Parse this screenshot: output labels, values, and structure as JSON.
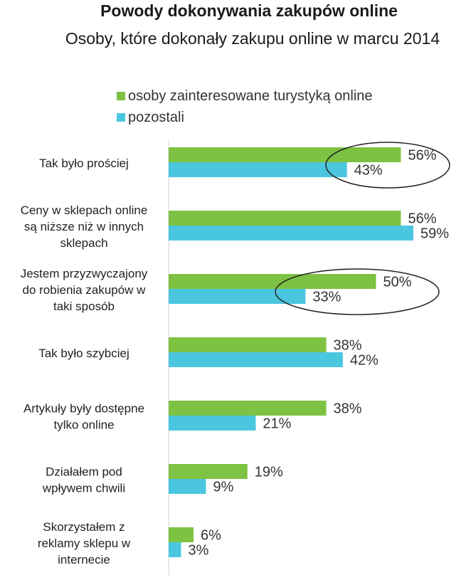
{
  "chart_data": {
    "type": "bar",
    "orientation": "horizontal",
    "title": "Powody dokonywania zakupów online",
    "subtitle": "Osoby, które dokonały zakupu online w marcu 2014",
    "categories": [
      "Tak było prościej",
      "Ceny w sklepach online są niższe niż w innych sklepach",
      "Jestem przyzwyczajony do robienia zakupów w taki sposób",
      "Tak było szybciej",
      "Artykuły były dostępne tylko online",
      "Działałem pod wpływem chwili",
      "Skorzystałem z reklamy sklepu w internecie"
    ],
    "category_lines": [
      [
        "Tak było prościej"
      ],
      [
        "Ceny w sklepach online",
        "są niższe niż w innych",
        "sklepach"
      ],
      [
        "Jestem przyzwyczajony",
        "do robienia zakupów w",
        "taki sposób"
      ],
      [
        "Tak było szybciej"
      ],
      [
        "Artykuły były dostępne",
        "tylko online"
      ],
      [
        "Działałem pod",
        "wpływem chwili"
      ],
      [
        "Skorzystałem z",
        "reklamy sklepu w",
        "internecie"
      ]
    ],
    "series": [
      {
        "name": "osoby zainteresowane turystyką online",
        "color": "#7dc242",
        "values": [
          56,
          56,
          50,
          38,
          38,
          19,
          6
        ]
      },
      {
        "name": "pozostali",
        "color": "#4bc6df",
        "values": [
          43,
          59,
          33,
          42,
          21,
          9,
          3
        ]
      }
    ],
    "value_suffix": "%",
    "xlim": [
      0,
      60
    ],
    "highlighted_categories": [
      0,
      2
    ],
    "grid": false
  }
}
